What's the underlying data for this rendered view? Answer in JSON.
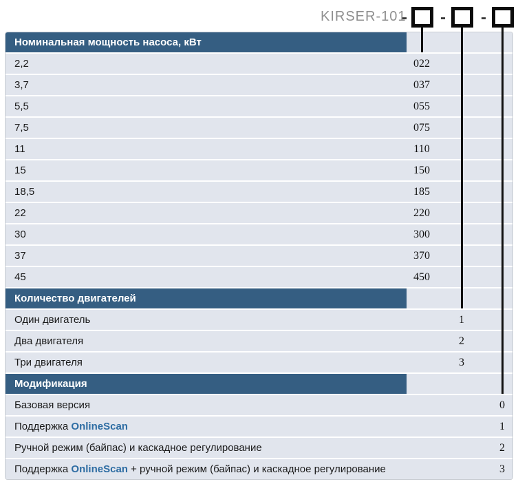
{
  "title_code": {
    "prefix": "KIRSER-101",
    "separators": [
      "-",
      "-",
      "-"
    ],
    "slot_count": 3
  },
  "sections": [
    {
      "header": "Номинальная мощность насоса, кВт",
      "rows": [
        {
          "label": "2,2",
          "value": "022"
        },
        {
          "label": "3,7",
          "value": "037"
        },
        {
          "label": "5,5",
          "value": "055"
        },
        {
          "label": "7,5",
          "value": "075"
        },
        {
          "label": "11",
          "value": "110"
        },
        {
          "label": "15",
          "value": "150"
        },
        {
          "label": "18,5",
          "value": "185"
        },
        {
          "label": "22",
          "value": "220"
        },
        {
          "label": "30",
          "value": "300"
        },
        {
          "label": "37",
          "value": "370"
        },
        {
          "label": "45",
          "value": "450"
        }
      ]
    },
    {
      "header": "Количество двигателей",
      "rows": [
        {
          "label": "Один двигатель",
          "value": "1"
        },
        {
          "label": "Два двигателя",
          "value": "2"
        },
        {
          "label": "Три двигателя",
          "value": "3"
        }
      ]
    },
    {
      "header": "Модификация",
      "rows": [
        {
          "pre": "Базовая версия",
          "brand": "",
          "post": "",
          "value": "0"
        },
        {
          "pre": "Поддержка ",
          "brand": "OnlineScan",
          "post": "",
          "value": "1"
        },
        {
          "pre": "Ручной режим (байпас) и каскадное регулирование",
          "brand": "",
          "post": "",
          "value": "2"
        },
        {
          "pre": "Поддержка ",
          "brand": "OnlineScan",
          "post": " + ручной режим (байпас) и каскадное регулирование",
          "value": "3"
        }
      ]
    }
  ],
  "colors": {
    "header_bg": "#355e82",
    "row_bg": "#e1e5ed",
    "brand": "#2e6da3",
    "prefix_text": "#8f8f8f",
    "line": "#101010",
    "border": "#c9cdd3"
  }
}
